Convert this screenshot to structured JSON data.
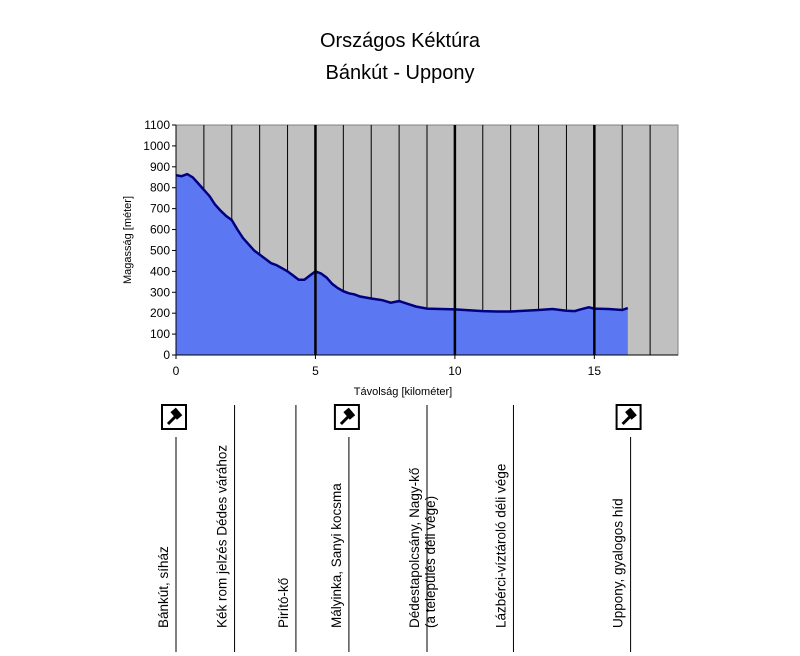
{
  "chart_data": {
    "type": "area",
    "title": "Országos Kéktúra",
    "subtitle": "Bánkút - Uppony",
    "xlabel": "Távolság [kilométer]",
    "ylabel": "Magasság [méter]",
    "xlim": [
      0,
      18
    ],
    "ylim": [
      0,
      1100
    ],
    "xticks": [
      0,
      5,
      10,
      15
    ],
    "yticks": [
      0,
      100,
      200,
      300,
      400,
      500,
      600,
      700,
      800,
      900,
      1000,
      1100
    ],
    "grid": true,
    "colors": {
      "plot_bg": "#c0c0c0",
      "fill": "#5b78f2",
      "line": "#000080",
      "grid": "#000000"
    },
    "series": [
      {
        "x": [
          0,
          0.2,
          0.4,
          0.6,
          0.8,
          1.0,
          1.2,
          1.4,
          1.6,
          1.8,
          2.0,
          2.2,
          2.4,
          2.6,
          2.8,
          3.0,
          3.2,
          3.4,
          3.6,
          3.8,
          4.0,
          4.2,
          4.4,
          4.6,
          4.8,
          5.0,
          5.2,
          5.4,
          5.6,
          5.8,
          6.0,
          6.2,
          6.4,
          6.6,
          6.8,
          7.0,
          7.4,
          7.7,
          8.0,
          8.3,
          8.6,
          9.0,
          9.5,
          10.0,
          10.5,
          11.0,
          11.5,
          12.0,
          12.5,
          13.0,
          13.5,
          14.0,
          14.3,
          14.5,
          14.8,
          15.0,
          15.5,
          16.0,
          16.2
        ],
        "y": [
          860,
          855,
          865,
          850,
          820,
          790,
          760,
          720,
          690,
          665,
          645,
          600,
          560,
          530,
          500,
          480,
          460,
          440,
          430,
          415,
          400,
          380,
          360,
          360,
          380,
          400,
          390,
          370,
          340,
          320,
          305,
          295,
          290,
          280,
          275,
          270,
          262,
          250,
          258,
          245,
          232,
          222,
          220,
          218,
          214,
          210,
          208,
          208,
          212,
          215,
          220,
          212,
          210,
          218,
          228,
          222,
          220,
          215,
          225
        ]
      }
    ],
    "waypoints": [
      {
        "x": 0.0,
        "label": "Bánkút, síház",
        "label2": "",
        "icon": true
      },
      {
        "x": 2.1,
        "label": "Kék rom jelzés Dédes várához",
        "label2": "",
        "icon": false
      },
      {
        "x": 4.3,
        "label": "Pirító-kő",
        "label2": "",
        "icon": false
      },
      {
        "x": 6.2,
        "label": "Mályinka, Sanyi kocsma",
        "label2": "",
        "icon": true
      },
      {
        "x": 9.0,
        "label": "Dédestapolcsány, Nagy-kő",
        "label2": "(a település déli vége)",
        "icon": false
      },
      {
        "x": 12.1,
        "label": "Lázbérci-víztároló déli vége",
        "label2": "",
        "icon": false
      },
      {
        "x": 16.3,
        "label": "Uppony, gyalogos híd",
        "label2": "",
        "icon": true
      }
    ]
  }
}
